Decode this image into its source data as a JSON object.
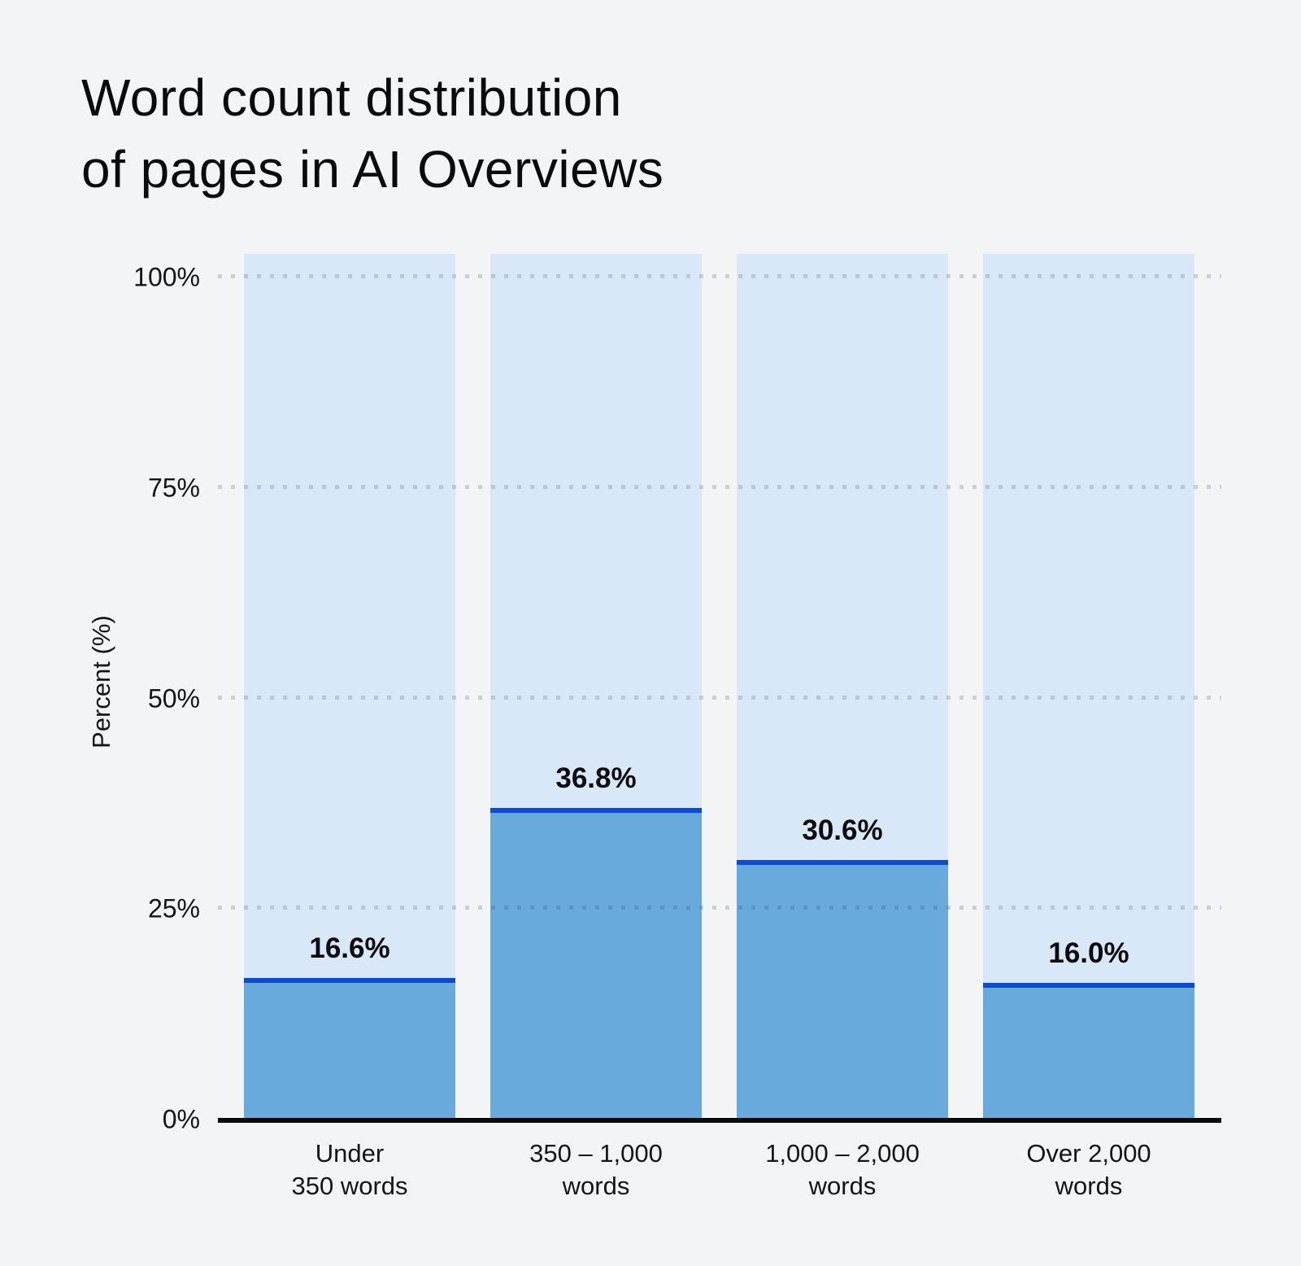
{
  "title": {
    "line1": "Word count distribution",
    "line2": "of pages in AI Overviews"
  },
  "chart_data": {
    "type": "bar",
    "title": "Word count distribution of pages in AI Overviews",
    "categories": [
      [
        "Under",
        "350 words"
      ],
      [
        "350 – 1,000",
        "words"
      ],
      [
        "1,000 – 2,000",
        "words"
      ],
      [
        "Over 2,000",
        "words"
      ]
    ],
    "values": [
      16.6,
      36.8,
      30.6,
      16.0
    ],
    "value_labels": [
      "16.6%",
      "36.8%",
      "30.6%",
      "16.0%"
    ],
    "xlabel": "",
    "ylabel": "Percent (%)",
    "ylim": [
      0,
      100
    ],
    "yticks": [
      {
        "value": 0,
        "label": "0%"
      },
      {
        "value": 25,
        "label": "25%"
      },
      {
        "value": 50,
        "label": "50%"
      },
      {
        "value": 75,
        "label": "75%"
      },
      {
        "value": 100,
        "label": "100%"
      }
    ],
    "grid": "horizontal-dotted",
    "legend": "none",
    "background_columns_to_100_percent": true,
    "colors": {
      "page_background": "#f2f4f6",
      "column_background": "#d9e8f8",
      "bar_fill": "#69aadd",
      "bar_top_border": "#0c4bd2",
      "axis_line": "#0b0b0d",
      "grid_dot": "rgba(30,45,70,0.18)",
      "text": "#0b0b0d"
    }
  }
}
